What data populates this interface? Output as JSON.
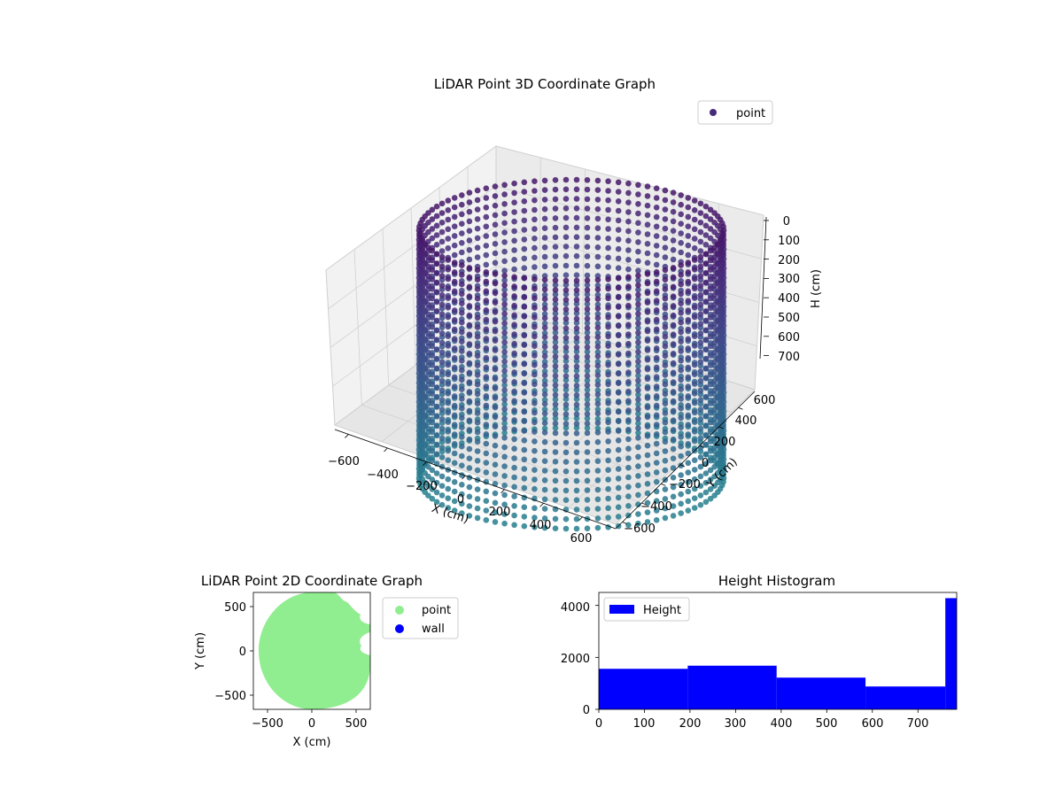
{
  "chart_data": [
    {
      "type": "scatter3d",
      "title": "LiDAR Point 3D Coordinate Graph",
      "xlabel": "X (cm)",
      "ylabel": "Y (cm)",
      "zlabel": "H (cm)",
      "x_ticks": [
        "−600",
        "−400",
        "−200",
        "0",
        "200",
        "400",
        "600"
      ],
      "y_ticks": [
        "−600",
        "−400",
        "−200",
        "0",
        "200",
        "400",
        "600"
      ],
      "z_ticks": [
        "0",
        "100",
        "200",
        "300",
        "400",
        "500",
        "600",
        "700"
      ],
      "xlim": [
        -650,
        650
      ],
      "ylim": [
        -650,
        650
      ],
      "zlim": [
        0,
        780
      ],
      "z_inverted": true,
      "grid": true,
      "legend": {
        "placement": "top-right",
        "entries": [
          "point"
        ]
      },
      "colormap": "viridis",
      "series": [
        {
          "name": "point",
          "shape": "cylinder",
          "center": [
            0,
            0
          ],
          "radius_cm": 600,
          "height_range_cm": [
            0,
            780
          ],
          "ring_step_deg": 4,
          "level_step_cm": 30
        }
      ],
      "colors": {
        "point_legend": "#472c7a"
      }
    },
    {
      "type": "scatter",
      "title": "LiDAR Point 2D Coordinate Graph",
      "xlabel": "X (cm)",
      "ylabel": "Y (cm)",
      "x_ticks": [
        "−500",
        "0",
        "500"
      ],
      "y_ticks": [
        "500",
        "0",
        "−500"
      ],
      "xlim": [
        -650,
        650
      ],
      "ylim": [
        -650,
        650
      ],
      "legend": {
        "placement": "outside-right",
        "entries": [
          "point",
          "wall"
        ]
      },
      "series": [
        {
          "name": "point",
          "color": "#90ee90",
          "shape": "disc",
          "radius_cm": 620
        },
        {
          "name": "wall",
          "color": "#0000ff"
        }
      ]
    },
    {
      "type": "bar",
      "title": "Height Histogram",
      "legend": {
        "placement": "top-left",
        "entries": [
          "Height"
        ]
      },
      "x_ticks": [
        "0",
        "100",
        "200",
        "300",
        "400",
        "500",
        "600",
        "700"
      ],
      "y_ticks": [
        "0",
        "2000",
        "4000"
      ],
      "xlim": [
        0,
        785
      ],
      "ylim": [
        0,
        4500
      ],
      "bin_edges": [
        0,
        195,
        390,
        585,
        760,
        785
      ],
      "counts": [
        1560,
        1680,
        1220,
        880,
        4280
      ],
      "series": [
        {
          "name": "Height",
          "color": "#0000ff"
        }
      ]
    }
  ]
}
